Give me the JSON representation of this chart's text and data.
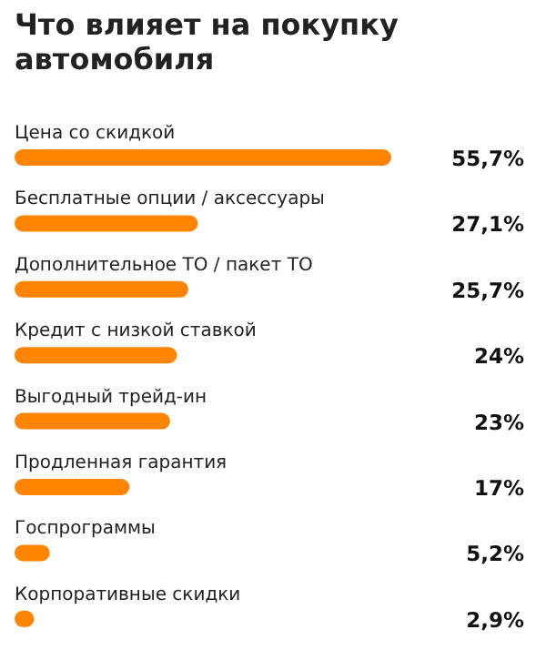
{
  "chart_data": {
    "type": "bar",
    "orientation": "horizontal",
    "title": "Что влияет на покупку автомобиля",
    "categories": [
      "Цена со скидкой",
      "Бесплатные опции / аксессуары",
      "Дополнительное ТО / пакет ТО",
      "Кредит с низкой ставкой",
      "Выгодный трейд-ин",
      "Продленная гарантия",
      "Госпрограммы",
      "Корпоративные скидки"
    ],
    "values": [
      55.7,
      27.1,
      25.7,
      24,
      23,
      17,
      5.2,
      2.9
    ],
    "value_labels": [
      "55,7%",
      "27,1%",
      "25,7%",
      "24%",
      "23%",
      "17%",
      "5,2%",
      "2,9%"
    ],
    "color": "#ff8400"
  }
}
